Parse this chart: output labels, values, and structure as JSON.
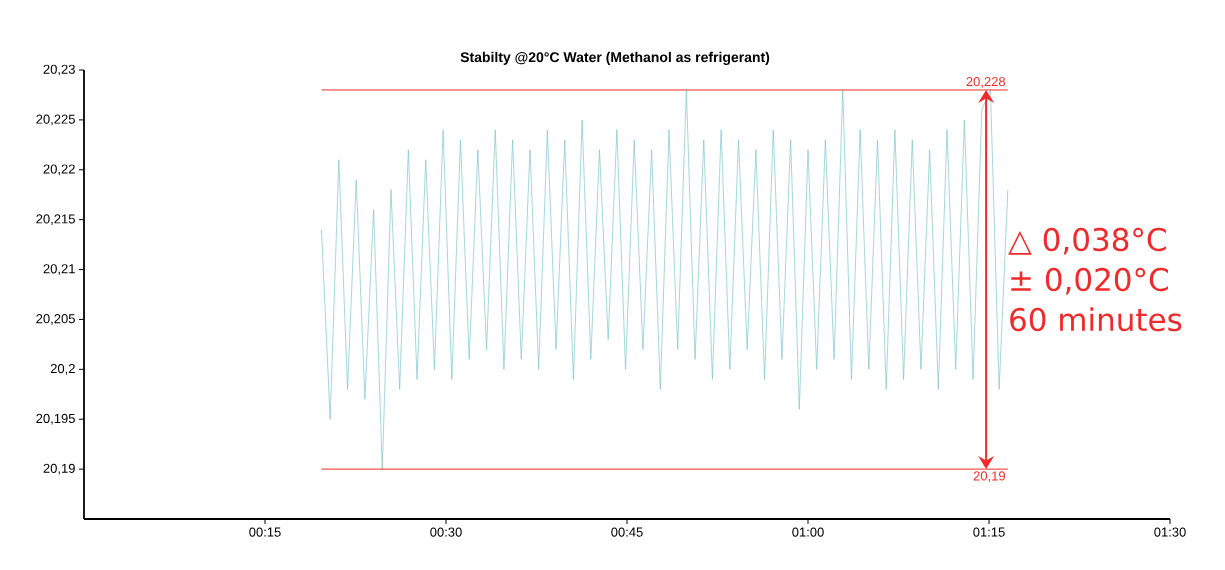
{
  "chart_data": {
    "type": "line",
    "subtitle": "Stabilty @20°C Water (Methanol as refrigerant)",
    "xlim": [
      0,
      1.5
    ],
    "ylim": [
      20.185,
      20.23
    ],
    "xticks": [
      {
        "value": 0.25,
        "label": "00:15"
      },
      {
        "value": 0.5,
        "label": "00:30"
      },
      {
        "value": 0.75,
        "label": "00:45"
      },
      {
        "value": 1.0,
        "label": "01:00"
      },
      {
        "value": 1.25,
        "label": "01:15"
      },
      {
        "value": 1.5,
        "label": "01:30"
      }
    ],
    "yticks": [
      {
        "value": 20.19,
        "label": "20,19"
      },
      {
        "value": 20.195,
        "label": "20,195"
      },
      {
        "value": 20.2,
        "label": "20,2"
      },
      {
        "value": 20.205,
        "label": "20,205"
      },
      {
        "value": 20.21,
        "label": "20,21"
      },
      {
        "value": 20.215,
        "label": "20,215"
      },
      {
        "value": 20.22,
        "label": "20,22"
      },
      {
        "value": 20.225,
        "label": "20,225"
      },
      {
        "value": 20.23,
        "label": "20,23"
      }
    ],
    "series": [
      {
        "color": "#7fc4cc",
        "x": [
          0.328,
          0.34,
          0.352,
          0.364,
          0.376,
          0.388,
          0.4,
          0.412,
          0.424,
          0.436,
          0.448,
          0.46,
          0.472,
          0.484,
          0.496,
          0.508,
          0.52,
          0.532,
          0.544,
          0.556,
          0.568,
          0.58,
          0.592,
          0.604,
          0.616,
          0.628,
          0.64,
          0.652,
          0.664,
          0.676,
          0.688,
          0.7,
          0.712,
          0.724,
          0.736,
          0.748,
          0.76,
          0.772,
          0.784,
          0.796,
          0.808,
          0.82,
          0.832,
          0.844,
          0.856,
          0.868,
          0.88,
          0.892,
          0.904,
          0.916,
          0.928,
          0.94,
          0.952,
          0.964,
          0.976,
          0.988,
          1.0,
          1.012,
          1.024,
          1.036,
          1.048,
          1.06,
          1.072,
          1.084,
          1.096,
          1.108,
          1.12,
          1.132,
          1.144,
          1.156,
          1.168,
          1.18,
          1.192,
          1.204,
          1.216,
          1.228,
          1.24,
          1.252,
          1.264,
          1.276
        ],
        "values": [
          20.214,
          20.195,
          20.221,
          20.198,
          20.219,
          20.197,
          20.216,
          20.19,
          20.218,
          20.198,
          20.222,
          20.199,
          20.221,
          20.2,
          20.224,
          20.199,
          20.223,
          20.201,
          20.222,
          20.202,
          20.224,
          20.2,
          20.223,
          20.201,
          20.222,
          20.2,
          20.224,
          20.202,
          20.223,
          20.199,
          20.225,
          20.201,
          20.222,
          20.203,
          20.224,
          20.2,
          20.223,
          20.202,
          20.222,
          20.198,
          20.224,
          20.202,
          20.228,
          20.201,
          20.223,
          20.199,
          20.224,
          20.2,
          20.223,
          20.202,
          20.222,
          20.199,
          20.224,
          20.201,
          20.223,
          20.196,
          20.222,
          20.2,
          20.223,
          20.201,
          20.228,
          20.199,
          20.224,
          20.2,
          20.223,
          20.198,
          20.224,
          20.199,
          20.223,
          20.2,
          20.222,
          20.198,
          20.224,
          20.2,
          20.225,
          20.199,
          20.226,
          20.228,
          20.198,
          20.218
        ]
      }
    ],
    "ref_lines": [
      {
        "axis": "y",
        "value": 20.228,
        "label": "20,228",
        "color": "#ee2a2a"
      },
      {
        "axis": "y",
        "value": 20.19,
        "label": "20,19",
        "color": "#ee2a2a"
      }
    ],
    "annotations": [
      "△ 0,038°C",
      "± 0,020°C",
      "60 minutes"
    ]
  }
}
